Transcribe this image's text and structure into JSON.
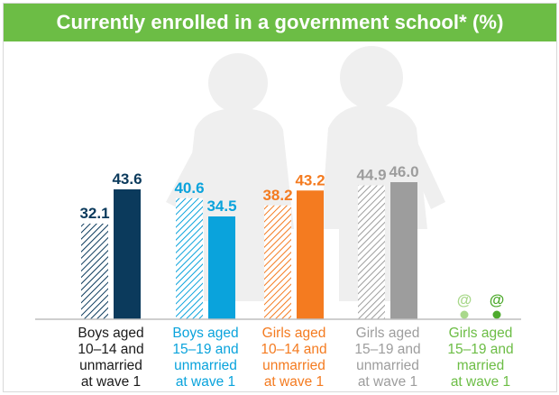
{
  "title": "Currently enrolled in a government school* (%)",
  "chart_data": {
    "type": "bar",
    "title": "Currently enrolled in a government school* (%)",
    "ylim": [
      0,
      50
    ],
    "legend": "none",
    "categories": [
      [
        "Boys aged",
        "10–14 and",
        "unmarried",
        "at wave 1"
      ],
      [
        "Boys aged",
        "15–19 and",
        "unmarried",
        "at wave 1"
      ],
      [
        "Girls aged",
        "10–14 and",
        "unmarried",
        "at wave 1"
      ],
      [
        "Girls aged",
        "15–19 and",
        "unmarried",
        "at wave 1"
      ],
      [
        "Girls aged",
        "15–19 and",
        "married",
        "at wave 1"
      ]
    ],
    "series": [
      {
        "pattern": "hatched",
        "values": [
          32.1,
          40.6,
          38.2,
          44.9,
          null
        ],
        "labels": [
          "32.1",
          "40.6",
          "38.2",
          "44.9",
          "@"
        ]
      },
      {
        "pattern": "solid",
        "values": [
          43.6,
          34.5,
          43.2,
          46.0,
          null
        ],
        "labels": [
          "43.6",
          "34.5",
          "43.2",
          "46.0",
          "@"
        ]
      }
    ],
    "colors": [
      "#0b3a5c",
      "#0aa3dc",
      "#f47b20",
      "#9d9d9d",
      "#6cbd45"
    ],
    "label_colors": [
      "#0b3a5c",
      "#0aa3dc",
      "#f47b20",
      "#9d9d9d",
      "#6cbd45"
    ],
    "marker_colors": [
      "#a9d88b",
      "#4daa2c"
    ]
  }
}
